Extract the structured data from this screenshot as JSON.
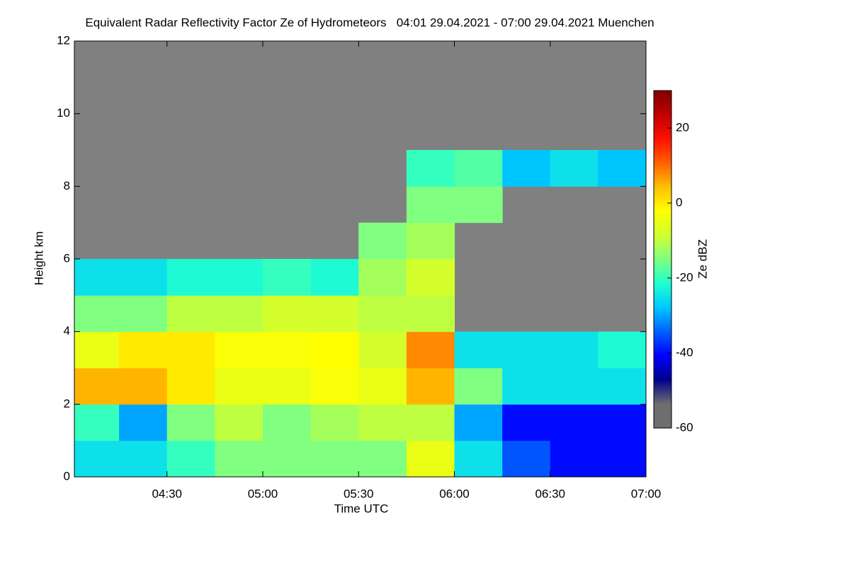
{
  "chart_data": {
    "type": "heatmap",
    "title": "Equivalent Radar Reflectivity Factor Ze of Hydrometeors   04:01 29.04.2021 - 07:00 29.04.2021 Muenchen",
    "x_label": "Time UTC",
    "y_label": "Height km",
    "colorbar_label": "Ze dBZ",
    "xlim": [
      241,
      420
    ],
    "xticks": [
      {
        "value": 270,
        "label": "04:30"
      },
      {
        "value": 300,
        "label": "05:00"
      },
      {
        "value": 330,
        "label": "05:30"
      },
      {
        "value": 360,
        "label": "06:00"
      },
      {
        "value": 390,
        "label": "06:30"
      },
      {
        "value": 420,
        "label": "07:00"
      }
    ],
    "ylim": [
      0,
      12
    ],
    "yticks": [
      0,
      2,
      4,
      6,
      8,
      10,
      12
    ],
    "xbins": [
      241,
      255,
      270,
      285,
      300,
      315,
      330,
      345,
      360,
      375,
      390,
      405,
      420
    ],
    "ybins": [
      0,
      1,
      2,
      3,
      4,
      5,
      6,
      7,
      8,
      9,
      10,
      11,
      12
    ],
    "zlim": [
      -60,
      30
    ],
    "zticks": [
      -60,
      -40,
      -20,
      0,
      20
    ],
    "missing_color": "#808080",
    "colormap": [
      "#6e6e6e",
      "#6e6e6e",
      "#00008f",
      "#0000ff",
      "#0060ff",
      "#00c8ff",
      "#20ffd0",
      "#80ff80",
      "#d0ff30",
      "#ffff00",
      "#ffc000",
      "#ff6000",
      "#ff1000",
      "#c00000",
      "#800000"
    ],
    "values": [
      [
        -25,
        -25,
        -20,
        -15,
        -15,
        -15,
        -15,
        -5,
        -25,
        -35,
        -40,
        -40
      ],
      [
        -20,
        -30,
        -15,
        -10,
        -15,
        -12,
        -10,
        -10,
        -30,
        -40,
        -40,
        -40
      ],
      [
        5,
        5,
        0,
        -5,
        -5,
        -3,
        -5,
        5,
        -15,
        -25,
        -25,
        -25
      ],
      [
        -5,
        0,
        0,
        -3,
        -3,
        -2,
        -8,
        8,
        -25,
        -25,
        -25,
        -22
      ],
      [
        -15,
        -15,
        -10,
        -10,
        -8,
        -8,
        -10,
        -10,
        null,
        null,
        null,
        null
      ],
      [
        -25,
        -25,
        -22,
        -22,
        -20,
        -22,
        -12,
        -8,
        null,
        null,
        null,
        null
      ],
      [
        null,
        null,
        null,
        null,
        null,
        null,
        -15,
        -12,
        null,
        null,
        null,
        null
      ],
      [
        null,
        null,
        null,
        null,
        null,
        null,
        null,
        -15,
        -15,
        null,
        null,
        null
      ],
      [
        null,
        null,
        null,
        null,
        null,
        null,
        null,
        -20,
        -18,
        -28,
        -25,
        -28
      ],
      [
        null,
        null,
        null,
        null,
        null,
        null,
        null,
        null,
        null,
        null,
        null,
        null
      ],
      [
        null,
        null,
        null,
        null,
        null,
        null,
        null,
        null,
        null,
        null,
        null,
        null
      ],
      [
        null,
        null,
        null,
        null,
        null,
        null,
        null,
        null,
        null,
        null,
        null,
        null
      ]
    ]
  }
}
